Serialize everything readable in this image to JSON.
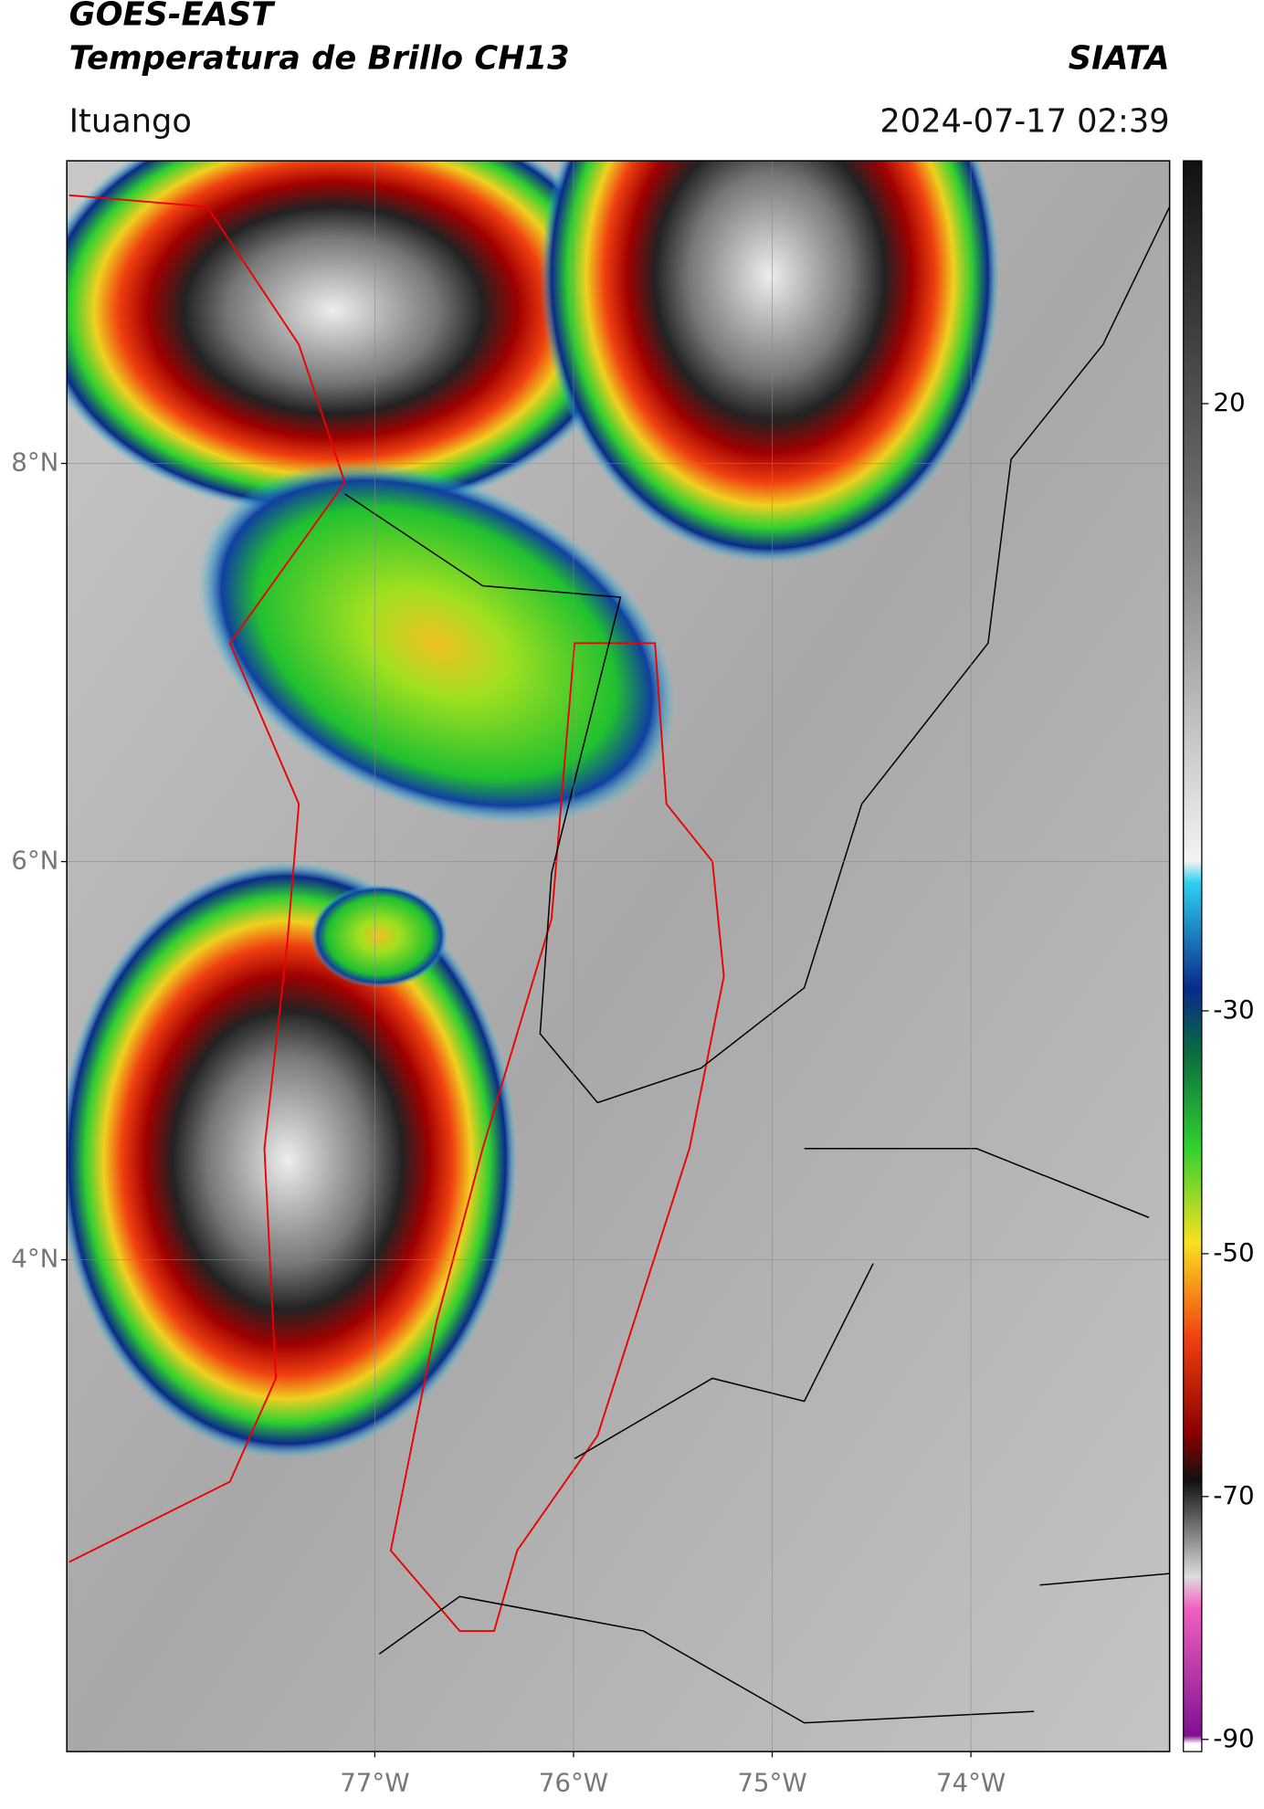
{
  "header": {
    "title_line1": "GOES-EAST",
    "title_line2": "Temperatura de Brillo CH13",
    "source": "SIATA",
    "location": "Ituango",
    "datetime": "2024-07-17 02:39"
  },
  "map": {
    "latlim": [
      1.53,
      9.52
    ],
    "lonlim": [
      -78.55,
      -73.0
    ],
    "lat_ticks": [
      {
        "value": 8,
        "label": "8°N"
      },
      {
        "value": 6,
        "label": "6°N"
      },
      {
        "value": 4,
        "label": "4°N"
      }
    ],
    "lon_ticks": [
      {
        "value": -77,
        "label": "77°W"
      },
      {
        "value": -76,
        "label": "76°W"
      },
      {
        "value": -75,
        "label": "75°W"
      },
      {
        "value": -74,
        "label": "74°W"
      }
    ]
  },
  "colorbar": {
    "lim": [
      -91,
      40
    ],
    "ticks": [
      20,
      -30,
      -50,
      -70,
      -90
    ]
  }
}
